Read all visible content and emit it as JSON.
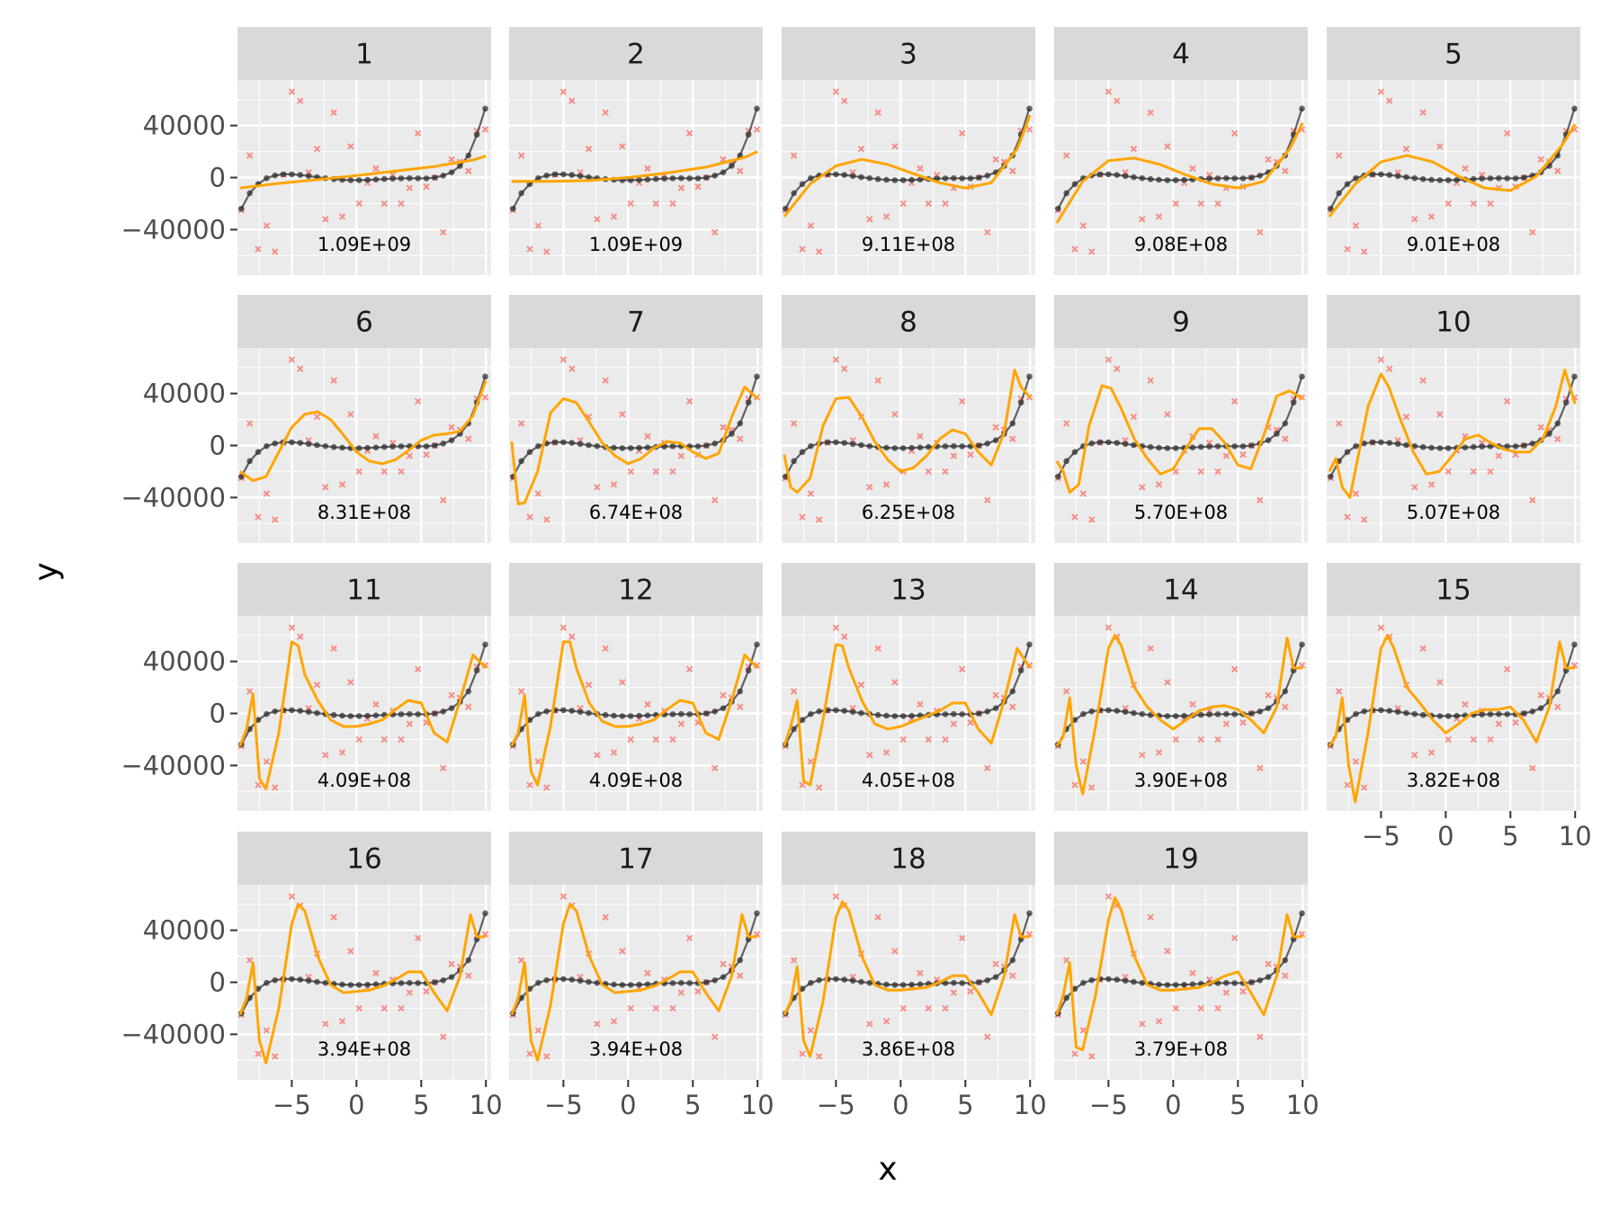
{
  "chart_data": {
    "type": "line",
    "xlabel": "x",
    "ylabel": "y",
    "xlim": [
      -9.2,
      10.4
    ],
    "ylim": [
      -75000,
      75000
    ],
    "x_ticks": [
      -5,
      0,
      5,
      10
    ],
    "x_tick_labels": [
      "−5",
      "0",
      "5",
      "10"
    ],
    "y_ticks": [
      -40000,
      0,
      40000
    ],
    "y_tick_labels": [
      "−40000",
      "0",
      "40000"
    ],
    "grid": true,
    "legend": "none",
    "colors": {
      "panel_background": "#ebebeb",
      "grid": "#ffffff",
      "strip_background": "#d9d9d9",
      "true_curve": "#333333",
      "noisy_points": "#f8766d",
      "fit_curve": "#ffa500"
    },
    "true_curve": {
      "x": [
        -8.9,
        -8.25,
        -7.6,
        -6.95,
        -6.3,
        -5.65,
        -5.0,
        -4.35,
        -3.7,
        -3.05,
        -2.4,
        -1.75,
        -1.1,
        -0.45,
        0.2,
        0.85,
        1.5,
        2.15,
        2.8,
        3.45,
        4.1,
        4.75,
        5.4,
        6.05,
        6.7,
        7.35,
        8.0,
        8.65,
        9.3,
        9.95
      ],
      "y": [
        -24000,
        -12000,
        -5000,
        -500,
        1600,
        2500,
        2500,
        2000,
        1200,
        300,
        -500,
        -1200,
        -1700,
        -2000,
        -2000,
        -1800,
        -1500,
        -1100,
        -800,
        -600,
        -500,
        -600,
        -600,
        0,
        1500,
        4000,
        9000,
        17000,
        33000,
        53000
      ]
    },
    "noisy_points": {
      "x": [
        -8.9,
        -8.25,
        -7.6,
        -6.95,
        -6.3,
        -5.65,
        -5.0,
        -4.35,
        -3.7,
        -3.05,
        -2.4,
        -1.75,
        -1.1,
        -0.45,
        0.2,
        0.85,
        1.5,
        2.15,
        2.8,
        3.45,
        4.1,
        4.75,
        5.4,
        6.05,
        6.7,
        7.35,
        8.0,
        8.65,
        9.3,
        9.95
      ],
      "y": [
        -25000,
        17000,
        -55000,
        -37000,
        -57000,
        2000,
        66000,
        59000,
        4000,
        22000,
        -32000,
        50000,
        -30000,
        24000,
        -20000,
        -4000,
        7000,
        -20000,
        2000,
        -20000,
        -8000,
        34000,
        -7000,
        0,
        -42000,
        14000,
        12000,
        5000,
        36000,
        37000
      ]
    },
    "panels": [
      {
        "label": "1",
        "mse": "1.09E+09",
        "fit_x": [
          -9,
          -6,
          -3,
          0,
          3,
          6,
          9,
          10
        ],
        "fit_y": [
          -8000,
          -4500,
          -1500,
          1500,
          5000,
          8500,
          13500,
          16500
        ]
      },
      {
        "label": "2",
        "mse": "1.09E+09",
        "fit_x": [
          -9,
          -6,
          -3,
          0,
          3,
          6,
          9,
          10
        ],
        "fit_y": [
          -3000,
          -3000,
          -2200,
          0,
          3500,
          8000,
          15500,
          20000
        ]
      },
      {
        "label": "3",
        "mse": "9.11E+08",
        "fit_x": [
          -9,
          -7,
          -5,
          -3,
          -1,
          1,
          3,
          5,
          7,
          9,
          10
        ],
        "fit_y": [
          -30000,
          -5000,
          9000,
          14000,
          10000,
          3000,
          -4000,
          -8000,
          -4000,
          22000,
          48000
        ]
      },
      {
        "label": "4",
        "mse": "9.08E+08",
        "fit_x": [
          -9,
          -7,
          -5,
          -3,
          -1,
          1,
          3,
          5,
          7,
          9,
          10
        ],
        "fit_y": [
          -35000,
          -3000,
          13000,
          15000,
          10000,
          2000,
          -5000,
          -8000,
          -3000,
          22000,
          42000
        ]
      },
      {
        "label": "5",
        "mse": "9.01E+08",
        "fit_x": [
          -9,
          -7,
          -5,
          -3,
          -1,
          1,
          3,
          5,
          7,
          9,
          10
        ],
        "fit_y": [
          -30000,
          -5000,
          12000,
          17000,
          12000,
          1000,
          -8000,
          -10000,
          1000,
          25000,
          41000
        ]
      },
      {
        "label": "6",
        "mse": "8.31E+08",
        "fit_x": [
          -9,
          -8,
          -7,
          -6,
          -5,
          -4,
          -3,
          -2,
          -1,
          0,
          1,
          2,
          3,
          4,
          5,
          6,
          7,
          8,
          9,
          10
        ],
        "fit_y": [
          -20000,
          -27000,
          -24000,
          -5000,
          14000,
          24000,
          26000,
          20000,
          8000,
          -5000,
          -12000,
          -14000,
          -11000,
          -4000,
          4000,
          8000,
          9000,
          11000,
          23000,
          50000
        ]
      },
      {
        "label": "7",
        "mse": "6.74E+08",
        "fit_x": [
          -9,
          -8.5,
          -8,
          -7,
          -6,
          -5,
          -4,
          -3,
          -2,
          -1,
          0,
          1,
          2,
          3,
          4,
          5,
          6,
          7,
          8,
          9,
          10
        ],
        "fit_y": [
          3000,
          -45000,
          -44000,
          -20000,
          25000,
          36000,
          33000,
          18000,
          2000,
          -8000,
          -14000,
          -10000,
          -2000,
          3000,
          2000,
          -5000,
          -10000,
          -6000,
          22000,
          45000,
          36000
        ]
      },
      {
        "label": "8",
        "mse": "6.25E+08",
        "fit_x": [
          -9,
          -8.5,
          -8,
          -7,
          -6,
          -5,
          -4,
          -3,
          -2,
          -1,
          0,
          1,
          2,
          3,
          4,
          5,
          6,
          7,
          8,
          8.8,
          9.3,
          10
        ],
        "fit_y": [
          -7000,
          -32000,
          -36000,
          -25000,
          15000,
          36000,
          37000,
          22000,
          3000,
          -11000,
          -20000,
          -17000,
          -8000,
          5000,
          12000,
          9000,
          -5000,
          -15000,
          10000,
          58000,
          45000,
          37000
        ]
      },
      {
        "label": "9",
        "mse": "5.70E+08",
        "fit_x": [
          -9,
          -8.5,
          -8,
          -7.3,
          -6.5,
          -5.5,
          -4.8,
          -4,
          -3,
          -2,
          -1,
          0,
          1,
          2,
          3,
          4,
          5,
          6,
          7,
          8,
          9,
          10
        ],
        "fit_y": [
          -12000,
          -20000,
          -36000,
          -30000,
          15000,
          46000,
          44000,
          28000,
          5000,
          -10000,
          -22000,
          -18000,
          -2000,
          13000,
          13000,
          2000,
          -15000,
          -18000,
          8000,
          38000,
          42000,
          36000
        ]
      },
      {
        "label": "10",
        "mse": "5.07E+08",
        "fit_x": [
          -9,
          -8.5,
          -8,
          -7.4,
          -6.8,
          -6,
          -5,
          -4.4,
          -3.5,
          -2.5,
          -1.5,
          -0.5,
          0.5,
          1.5,
          2.5,
          3.5,
          4.5,
          5.5,
          6.5,
          7.5,
          8.5,
          9.2,
          10
        ],
        "fit_y": [
          -20000,
          -10000,
          -32000,
          -40000,
          -10000,
          30000,
          55000,
          45000,
          20000,
          -5000,
          -22000,
          -20000,
          -8000,
          5000,
          8000,
          2000,
          -3000,
          -5000,
          -5000,
          5000,
          30000,
          58000,
          32000
        ]
      },
      {
        "label": "11",
        "mse": "4.09E+08",
        "fit_x": [
          -9,
          -8.5,
          -8,
          -7.5,
          -7,
          -6,
          -5,
          -4.5,
          -4,
          -3,
          -2,
          -1,
          0,
          1,
          2,
          3,
          4,
          5,
          6,
          7,
          8,
          9,
          10
        ],
        "fit_y": [
          -25000,
          -12000,
          15000,
          -50000,
          -58000,
          -15000,
          55000,
          52000,
          30000,
          10000,
          -5000,
          -10000,
          -10000,
          -8000,
          -5000,
          3000,
          10000,
          8000,
          -15000,
          -22000,
          10000,
          45000,
          35000
        ]
      },
      {
        "label": "12",
        "mse": "4.09E+08",
        "fit_x": [
          -9,
          -8.5,
          -8,
          -7.5,
          -7,
          -6,
          -5,
          -4.5,
          -4,
          -3,
          -2,
          -1,
          0,
          1,
          2,
          3,
          4,
          5,
          6,
          7,
          8,
          9,
          10
        ],
        "fit_y": [
          -25000,
          -15000,
          14000,
          -45000,
          -55000,
          -10000,
          55000,
          55000,
          35000,
          8000,
          -6000,
          -10000,
          -10000,
          -8000,
          -5000,
          3000,
          10000,
          8000,
          -15000,
          -20000,
          10000,
          45000,
          35000
        ]
      },
      {
        "label": "13",
        "mse": "4.05E+08",
        "fit_x": [
          -9,
          -8.5,
          -8,
          -7.5,
          -7,
          -6,
          -5,
          -4.5,
          -4,
          -3,
          -2,
          -1,
          0,
          1,
          2,
          3,
          4,
          5,
          6,
          7,
          8,
          9,
          10
        ],
        "fit_y": [
          -25000,
          -10000,
          10000,
          -52000,
          -55000,
          -5000,
          53000,
          52000,
          35000,
          10000,
          -8000,
          -12000,
          -10000,
          -6000,
          -2000,
          2000,
          8000,
          8000,
          -12000,
          -23000,
          10000,
          50000,
          35000
        ]
      },
      {
        "label": "14",
        "mse": "3.90E+08",
        "fit_x": [
          -9,
          -8.5,
          -8,
          -7.5,
          -7,
          -6,
          -5,
          -4.5,
          -4,
          -3,
          -2,
          -1,
          0,
          1,
          2,
          3,
          4,
          5,
          6,
          7,
          8,
          8.8,
          9.3,
          10
        ],
        "fit_y": [
          -25000,
          -18000,
          12000,
          -40000,
          -62000,
          -10000,
          50000,
          60000,
          52000,
          20000,
          5000,
          -5000,
          -12000,
          -5000,
          2000,
          5000,
          6000,
          3000,
          -5000,
          -15000,
          5000,
          58000,
          35000,
          35000
        ]
      },
      {
        "label": "15",
        "mse": "3.82E+08",
        "fit_x": [
          -9,
          -8.5,
          -8,
          -7.5,
          -7,
          -6,
          -5,
          -4.5,
          -4,
          -3,
          -2,
          -1,
          0,
          1,
          2,
          3,
          4,
          5,
          6,
          7,
          8,
          8.8,
          9.3,
          10
        ],
        "fit_y": [
          -25000,
          -18000,
          12000,
          -40000,
          -68000,
          -15000,
          50000,
          60000,
          50000,
          20000,
          8000,
          -5000,
          -15000,
          -8000,
          0,
          3000,
          3000,
          5000,
          -5000,
          -22000,
          5000,
          55000,
          35000,
          35000
        ]
      },
      {
        "label": "16",
        "mse": "3.94E+08",
        "fit_x": [
          -9,
          -8.5,
          -8,
          -7.5,
          -7,
          -6,
          -5,
          -4.5,
          -4,
          -3,
          -2,
          -1,
          0,
          1,
          2,
          3,
          4,
          5,
          6,
          7,
          8,
          8.8,
          9.3,
          10
        ],
        "fit_y": [
          -25000,
          -12000,
          15000,
          -45000,
          -62000,
          -20000,
          45000,
          60000,
          55000,
          20000,
          -2000,
          -8000,
          -7000,
          -6000,
          -3000,
          2000,
          8000,
          8000,
          -8000,
          -22000,
          5000,
          52000,
          35000,
          35000
        ]
      },
      {
        "label": "17",
        "mse": "3.94E+08",
        "fit_x": [
          -9,
          -8.5,
          -8,
          -7.5,
          -7,
          -6,
          -5,
          -4.5,
          -4,
          -3,
          -2,
          -1,
          0,
          1,
          2,
          3,
          4,
          5,
          6,
          7,
          8,
          8.8,
          9.3,
          10
        ],
        "fit_y": [
          -25000,
          -12000,
          15000,
          -45000,
          -60000,
          -18000,
          45000,
          60000,
          55000,
          20000,
          -2000,
          -8000,
          -7000,
          -6000,
          -3000,
          2000,
          8000,
          8000,
          -8000,
          -22000,
          5000,
          52000,
          35000,
          35000
        ]
      },
      {
        "label": "18",
        "mse": "3.86E+08",
        "fit_x": [
          -9,
          -8.5,
          -8,
          -7.5,
          -7,
          -6,
          -5,
          -4.5,
          -4,
          -3,
          -2,
          -1,
          0,
          1,
          2,
          3,
          4,
          5,
          6,
          7,
          8,
          8.8,
          9.3,
          10
        ],
        "fit_y": [
          -25000,
          -15000,
          12000,
          -45000,
          -57000,
          -15000,
          50000,
          62000,
          55000,
          20000,
          -2000,
          -6000,
          -6000,
          -5000,
          -4000,
          0,
          5000,
          5000,
          -8000,
          -25000,
          5000,
          52000,
          35000,
          35000
        ]
      },
      {
        "label": "19",
        "mse": "3.79E+08",
        "fit_x": [
          -9,
          -8.5,
          -8,
          -7.5,
          -7,
          -6,
          -5,
          -4.5,
          -4,
          -3,
          -2,
          -1,
          0,
          1,
          2,
          3,
          4,
          5,
          6,
          7,
          8,
          8.8,
          9.3,
          10
        ],
        "fit_y": [
          -25000,
          -10000,
          15000,
          -50000,
          -52000,
          -10000,
          48000,
          65000,
          55000,
          20000,
          -2000,
          -6000,
          -6000,
          -5000,
          -4000,
          0,
          5000,
          8000,
          -8000,
          -25000,
          5000,
          52000,
          35000,
          35000
        ]
      }
    ]
  }
}
